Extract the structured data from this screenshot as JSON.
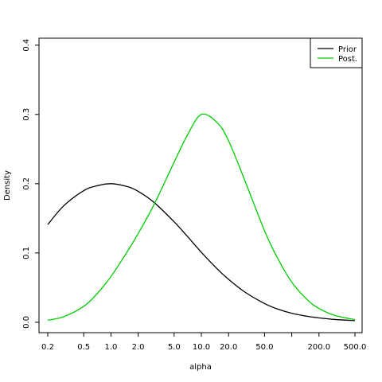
{
  "chart_data": {
    "type": "line",
    "title": "",
    "xlabel": "alpha",
    "ylabel": "Density",
    "x_scale": "log",
    "xlim": [
      0.16,
      600
    ],
    "ylim": [
      -0.015,
      0.41
    ],
    "x_ticks": [
      0.2,
      0.5,
      1.0,
      2.0,
      5.0,
      10.0,
      20.0,
      50.0,
      100.0,
      200.0,
      500.0
    ],
    "x_tick_labels": [
      "0.2",
      "0.5",
      "1.0",
      "2.0",
      "5.0",
      "10.0",
      "20.0",
      "50.0",
      "",
      "200.0",
      "500.0"
    ],
    "y_ticks": [
      0.0,
      0.1,
      0.2,
      0.3,
      0.4
    ],
    "y_tick_labels": [
      "0.0",
      "0.1",
      "0.2",
      "0.3",
      "0.4"
    ],
    "grid": false,
    "legend": {
      "position": "top-right"
    },
    "series": [
      {
        "name": "Prior",
        "color": "#000000",
        "x": [
          0.2,
          0.3,
          0.5,
          0.7,
          1.0,
          1.5,
          2.0,
          3.0,
          5.0,
          7.0,
          10.0,
          15.0,
          20.0,
          30.0,
          50.0,
          70.0,
          100.0,
          150.0,
          200.0,
          300.0,
          500.0
        ],
        "y": [
          0.141,
          0.168,
          0.19,
          0.197,
          0.2,
          0.196,
          0.189,
          0.173,
          0.145,
          0.124,
          0.101,
          0.077,
          0.062,
          0.044,
          0.027,
          0.019,
          0.013,
          0.0085,
          0.0063,
          0.004,
          0.0024
        ]
      },
      {
        "name": "Post.",
        "color": "#00cc00",
        "x": [
          0.2,
          0.3,
          0.5,
          0.7,
          1.0,
          1.5,
          2.0,
          3.0,
          5.0,
          7.0,
          10.0,
          15.0,
          20.0,
          30.0,
          50.0,
          70.0,
          100.0,
          150.0,
          200.0,
          300.0,
          500.0
        ],
        "y": [
          0.003,
          0.008,
          0.023,
          0.041,
          0.066,
          0.101,
          0.128,
          0.17,
          0.231,
          0.27,
          0.3,
          0.288,
          0.262,
          0.206,
          0.132,
          0.092,
          0.058,
          0.032,
          0.02,
          0.0098,
          0.0038
        ]
      }
    ]
  }
}
